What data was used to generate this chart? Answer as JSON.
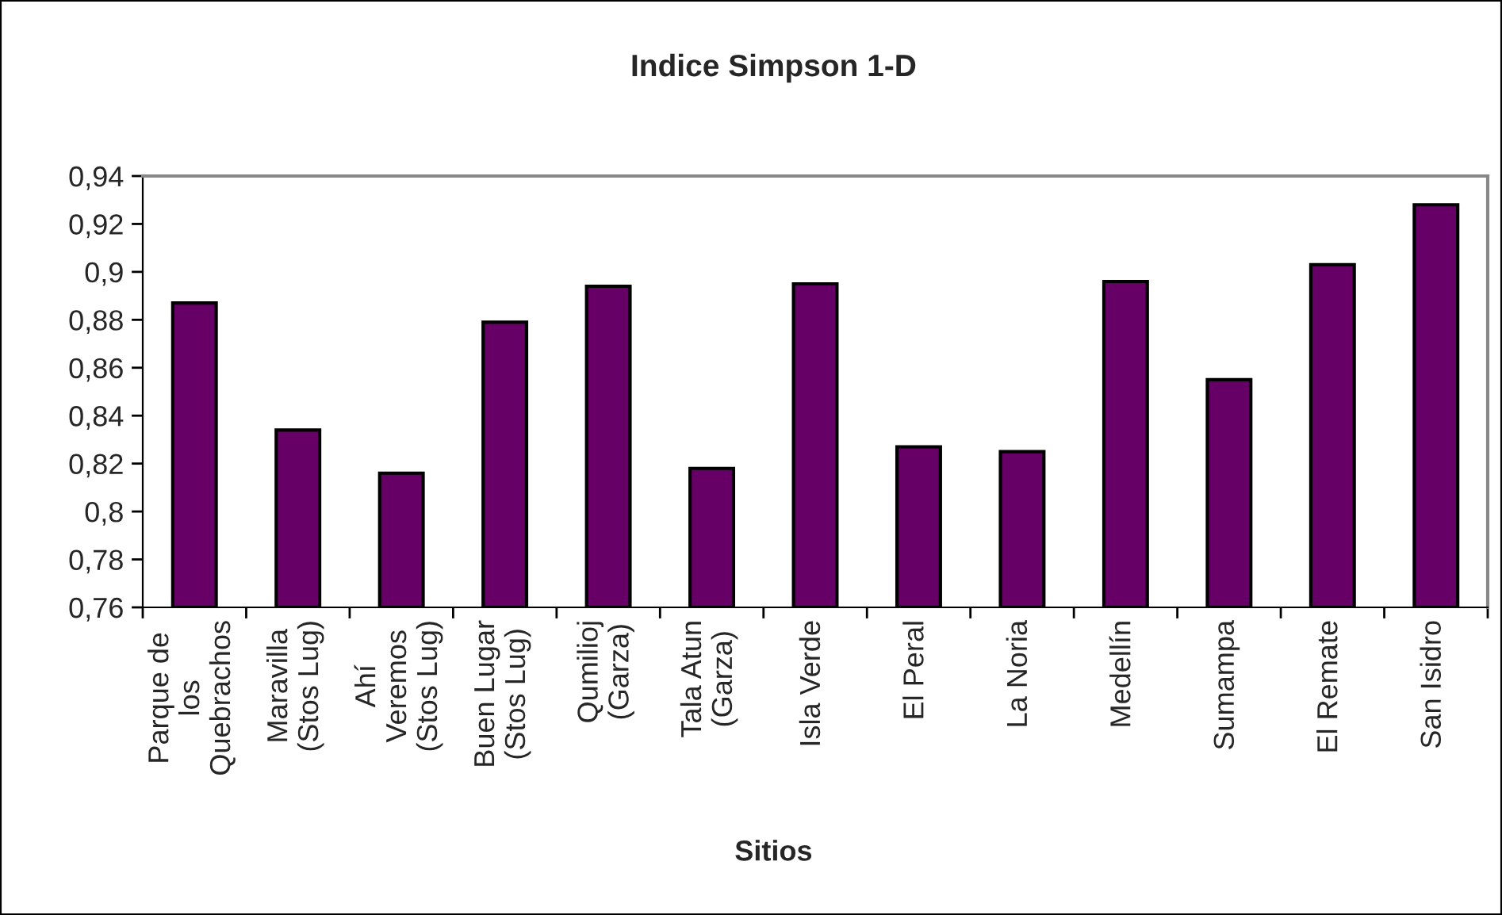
{
  "chart_data": {
    "type": "bar",
    "title": "Indice Simpson 1-D",
    "xlabel": "Sitios",
    "categories": [
      "Parque de los Quebrachos",
      "Maravilla (Stos Lug)",
      "Ahí Veremos (Stos Lug)",
      "Buen Lugar (Stos Lug)",
      "Qumilioj (Garza)",
      "Tala Atun (Garza)",
      "Isla Verde",
      "El Peral",
      "La Noria",
      "Medellín",
      "Sumampa",
      "El Remate",
      "San Isidro"
    ],
    "values": [
      0.887,
      0.834,
      0.816,
      0.879,
      0.894,
      0.818,
      0.895,
      0.827,
      0.825,
      0.896,
      0.855,
      0.903,
      0.928
    ],
    "color": "#660066",
    "ylim": [
      0.76,
      0.94
    ],
    "yticks": [
      {
        "value": 0.76,
        "label": "0,76"
      },
      {
        "value": 0.78,
        "label": "0,78"
      },
      {
        "value": 0.8,
        "label": "0,8"
      },
      {
        "value": 0.82,
        "label": "0,82"
      },
      {
        "value": 0.84,
        "label": "0,84"
      },
      {
        "value": 0.86,
        "label": "0,86"
      },
      {
        "value": 0.88,
        "label": "0,88"
      },
      {
        "value": 0.9,
        "label": "0,9"
      },
      {
        "value": 0.92,
        "label": "0,92"
      },
      {
        "value": 0.94,
        "label": "0,94"
      }
    ],
    "grid": false,
    "legend": false
  }
}
